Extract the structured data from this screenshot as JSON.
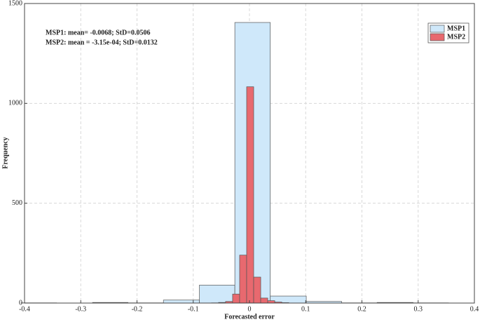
{
  "chart_data": {
    "type": "histogram",
    "xlabel": "Forecasted error",
    "ylabel": "Frequency",
    "annotations": [
      "MSP1: mean= -0.0068; StD=0.0506",
      "MSP2: mean = -3.15e-04; StD=0.0132"
    ],
    "series": [
      {
        "name": "MSP1",
        "color": "#cfe8fa",
        "bins": [
          -0.406,
          -0.343,
          -0.279,
          -0.216,
          -0.153,
          -0.089,
          -0.026,
          0.037,
          0.101,
          0.164,
          0.227,
          0.291,
          0.354
        ],
        "values": [
          1,
          0,
          3,
          1,
          15,
          90,
          1405,
          35,
          8,
          1,
          3,
          1
        ]
      },
      {
        "name": "MSP2",
        "color": "#e8696f",
        "bins": [
          -0.0675,
          -0.055,
          -0.0425,
          -0.03,
          -0.0175,
          -0.005,
          0.0075,
          0.02,
          0.0325,
          0.045,
          0.0575,
          0.07
        ],
        "values": [
          1,
          3,
          8,
          45,
          240,
          1083,
          130,
          25,
          12,
          5,
          2
        ]
      }
    ],
    "xlim": [
      -0.4,
      0.4
    ],
    "xticks": [
      -0.4,
      -0.3,
      -0.2,
      -0.1,
      0,
      0.1,
      0.2,
      0.3,
      0.4
    ],
    "ylim": [
      0,
      1500
    ],
    "yticks": [
      0,
      500,
      1000,
      1500
    ],
    "grid": true,
    "legend": "upper right"
  }
}
